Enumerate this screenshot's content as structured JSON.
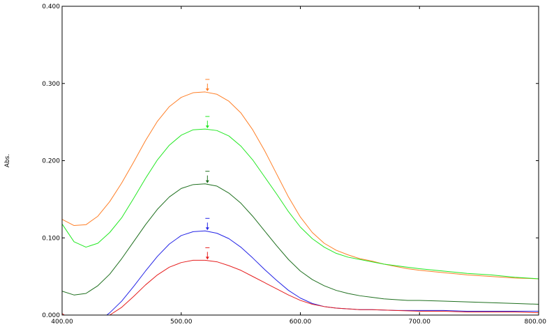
{
  "chart_data": {
    "type": "line",
    "title": "",
    "xlabel": "",
    "ylabel": "Abs.",
    "xlim": [
      400,
      800
    ],
    "ylim": [
      0,
      0.4
    ],
    "grid": false,
    "legend": "none",
    "x_ticks": [
      400,
      500,
      600,
      700,
      800
    ],
    "x_tick_labels": [
      "400.00",
      "500.00",
      "600.00",
      "700.00",
      "800.00"
    ],
    "y_ticks": [
      0,
      0.1,
      0.2,
      0.3,
      0.4
    ],
    "y_tick_labels": [
      "0.000",
      "0.100",
      "0.200",
      "0.300",
      "0.400"
    ],
    "series": [
      {
        "color": "#ff7f27",
        "peak": [
          522,
          0.289
        ],
        "points": [
          [
            400,
            0.124
          ],
          [
            410,
            0.116
          ],
          [
            420,
            0.117
          ],
          [
            430,
            0.128
          ],
          [
            440,
            0.147
          ],
          [
            450,
            0.171
          ],
          [
            460,
            0.198
          ],
          [
            470,
            0.226
          ],
          [
            480,
            0.251
          ],
          [
            490,
            0.27
          ],
          [
            500,
            0.282
          ],
          [
            510,
            0.288
          ],
          [
            520,
            0.289
          ],
          [
            530,
            0.286
          ],
          [
            540,
            0.277
          ],
          [
            550,
            0.262
          ],
          [
            560,
            0.24
          ],
          [
            570,
            0.213
          ],
          [
            580,
            0.183
          ],
          [
            590,
            0.153
          ],
          [
            600,
            0.127
          ],
          [
            610,
            0.107
          ],
          [
            620,
            0.093
          ],
          [
            630,
            0.084
          ],
          [
            640,
            0.078
          ],
          [
            650,
            0.073
          ],
          [
            660,
            0.07
          ],
          [
            670,
            0.066
          ],
          [
            680,
            0.063
          ],
          [
            690,
            0.06
          ],
          [
            700,
            0.058
          ],
          [
            720,
            0.055
          ],
          [
            740,
            0.052
          ],
          [
            760,
            0.05
          ],
          [
            780,
            0.048
          ],
          [
            800,
            0.047
          ]
        ]
      },
      {
        "color": "#22e822",
        "peak": [
          522,
          0.241
        ],
        "points": [
          [
            400,
            0.118
          ],
          [
            410,
            0.095
          ],
          [
            420,
            0.088
          ],
          [
            430,
            0.093
          ],
          [
            440,
            0.107
          ],
          [
            450,
            0.126
          ],
          [
            460,
            0.151
          ],
          [
            470,
            0.177
          ],
          [
            480,
            0.201
          ],
          [
            490,
            0.22
          ],
          [
            500,
            0.233
          ],
          [
            510,
            0.24
          ],
          [
            520,
            0.241
          ],
          [
            530,
            0.239
          ],
          [
            540,
            0.232
          ],
          [
            550,
            0.219
          ],
          [
            560,
            0.201
          ],
          [
            570,
            0.179
          ],
          [
            580,
            0.157
          ],
          [
            590,
            0.134
          ],
          [
            600,
            0.114
          ],
          [
            610,
            0.099
          ],
          [
            620,
            0.088
          ],
          [
            630,
            0.08
          ],
          [
            640,
            0.075
          ],
          [
            650,
            0.072
          ],
          [
            660,
            0.069
          ],
          [
            670,
            0.066
          ],
          [
            680,
            0.064
          ],
          [
            690,
            0.062
          ],
          [
            700,
            0.06
          ],
          [
            720,
            0.057
          ],
          [
            740,
            0.054
          ],
          [
            760,
            0.052
          ],
          [
            780,
            0.049
          ],
          [
            800,
            0.047
          ]
        ]
      },
      {
        "color": "#1e6f1e",
        "peak": [
          522,
          0.17
        ],
        "points": [
          [
            400,
            0.031
          ],
          [
            410,
            0.026
          ],
          [
            420,
            0.028
          ],
          [
            430,
            0.038
          ],
          [
            440,
            0.053
          ],
          [
            450,
            0.073
          ],
          [
            460,
            0.095
          ],
          [
            470,
            0.117
          ],
          [
            480,
            0.137
          ],
          [
            490,
            0.153
          ],
          [
            500,
            0.164
          ],
          [
            510,
            0.169
          ],
          [
            520,
            0.17
          ],
          [
            530,
            0.167
          ],
          [
            540,
            0.158
          ],
          [
            550,
            0.145
          ],
          [
            560,
            0.128
          ],
          [
            570,
            0.109
          ],
          [
            580,
            0.09
          ],
          [
            590,
            0.072
          ],
          [
            600,
            0.057
          ],
          [
            610,
            0.046
          ],
          [
            620,
            0.038
          ],
          [
            630,
            0.032
          ],
          [
            640,
            0.028
          ],
          [
            650,
            0.025
          ],
          [
            660,
            0.023
          ],
          [
            670,
            0.021
          ],
          [
            680,
            0.02
          ],
          [
            690,
            0.019
          ],
          [
            700,
            0.019
          ],
          [
            720,
            0.018
          ],
          [
            740,
            0.017
          ],
          [
            760,
            0.016
          ],
          [
            780,
            0.015
          ],
          [
            800,
            0.014
          ]
        ]
      },
      {
        "color": "#2323e6",
        "peak": [
          522,
          0.109
        ],
        "points": [
          [
            435,
            -0.003
          ],
          [
            440,
            0.003
          ],
          [
            450,
            0.018
          ],
          [
            460,
            0.037
          ],
          [
            470,
            0.057
          ],
          [
            480,
            0.076
          ],
          [
            490,
            0.092
          ],
          [
            500,
            0.103
          ],
          [
            510,
            0.108
          ],
          [
            520,
            0.109
          ],
          [
            530,
            0.106
          ],
          [
            540,
            0.099
          ],
          [
            550,
            0.088
          ],
          [
            560,
            0.074
          ],
          [
            570,
            0.059
          ],
          [
            580,
            0.045
          ],
          [
            590,
            0.032
          ],
          [
            600,
            0.022
          ],
          [
            610,
            0.015
          ],
          [
            620,
            0.011
          ],
          [
            630,
            0.009
          ],
          [
            640,
            0.008
          ],
          [
            650,
            0.007
          ],
          [
            660,
            0.007
          ],
          [
            680,
            0.006
          ],
          [
            700,
            0.006
          ],
          [
            720,
            0.006
          ],
          [
            740,
            0.005
          ],
          [
            760,
            0.005
          ],
          [
            780,
            0.005
          ],
          [
            800,
            0.005
          ]
        ]
      },
      {
        "color": "#e61e1e",
        "peak": [
          522,
          0.071
        ],
        "points": [
          [
            400,
            0.002
          ],
          [
            402,
            0.0
          ],
          [
            440,
            0.0
          ],
          [
            450,
            0.01
          ],
          [
            460,
            0.024
          ],
          [
            470,
            0.039
          ],
          [
            480,
            0.052
          ],
          [
            490,
            0.062
          ],
          [
            500,
            0.068
          ],
          [
            510,
            0.071
          ],
          [
            520,
            0.071
          ],
          [
            530,
            0.069
          ],
          [
            540,
            0.064
          ],
          [
            550,
            0.058
          ],
          [
            560,
            0.05
          ],
          [
            570,
            0.042
          ],
          [
            580,
            0.034
          ],
          [
            590,
            0.026
          ],
          [
            600,
            0.019
          ],
          [
            610,
            0.014
          ],
          [
            620,
            0.011
          ],
          [
            630,
            0.009
          ],
          [
            640,
            0.008
          ],
          [
            650,
            0.007
          ],
          [
            660,
            0.007
          ],
          [
            680,
            0.006
          ],
          [
            700,
            0.005
          ],
          [
            720,
            0.005
          ],
          [
            740,
            0.004
          ],
          [
            760,
            0.004
          ],
          [
            780,
            0.004
          ],
          [
            800,
            0.003
          ]
        ]
      }
    ]
  }
}
